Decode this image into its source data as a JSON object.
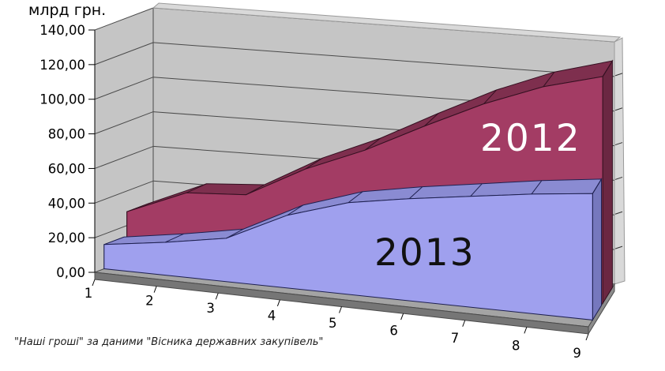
{
  "title": "млрд грн.",
  "caption": "\"Наші гроші\" за даними \"Вісника державних закупівель\"",
  "chart_data": {
    "type": "area",
    "style": "3d-area-excel",
    "title": "млрд грн.",
    "categories": [
      "1",
      "2",
      "3",
      "4",
      "5",
      "6",
      "7",
      "8",
      "9"
    ],
    "series": [
      {
        "name": "2012",
        "values": [
          28,
          42,
          44,
          62,
          76,
          93,
          109,
          122,
          131
        ],
        "color_front": "#A33C64",
        "color_top": "#7E2F4E",
        "color_side": "#6B2742",
        "color_edge": "#341021",
        "label_color": "#FFFFFF"
      },
      {
        "name": "2013",
        "values": [
          14,
          19,
          25,
          42,
          53,
          59,
          64,
          69,
          73
        ],
        "color_front": "#9FA0EE",
        "color_top": "#8A8BD2",
        "color_side": "#7678BE",
        "color_edge": "#1E2050",
        "label_color": "#111111"
      }
    ],
    "ylabel": "млрд грн.",
    "ylim": [
      0,
      140
    ],
    "ytick_step": 20,
    "ytick_labels": [
      "0,00",
      "20,00",
      "40,00",
      "60,00",
      "80,00",
      "100,00",
      "120,00",
      "140,00"
    ],
    "grid_on": true,
    "legend_position": "labels-on-areas",
    "wall_color": "#C5C5C5",
    "wall_edge_color": "#D9D9D9",
    "floor_color": "#A4A4A4",
    "floor_edge_color": "#767676",
    "gridline_color": "#4A4A4A",
    "text_color": "#000000"
  }
}
